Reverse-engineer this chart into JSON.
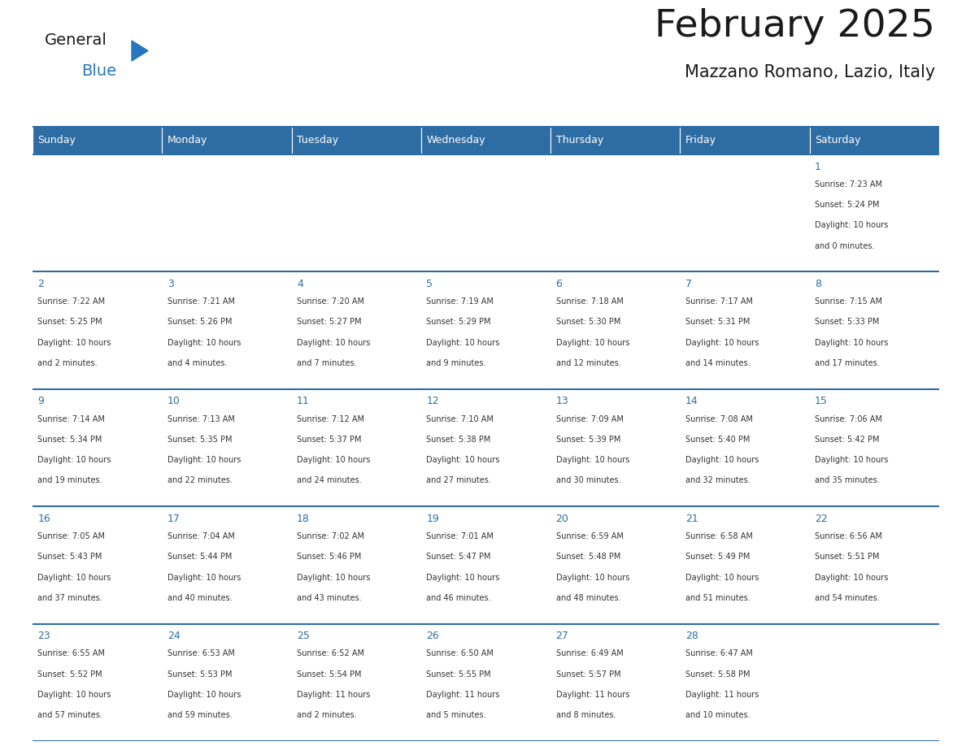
{
  "title": "February 2025",
  "subtitle": "Mazzano Romano, Lazio, Italy",
  "days_of_week": [
    "Sunday",
    "Monday",
    "Tuesday",
    "Wednesday",
    "Thursday",
    "Friday",
    "Saturday"
  ],
  "header_bg": "#2E6DA4",
  "header_text_color": "#FFFFFF",
  "cell_bg": "#FFFFFF",
  "cell_alt_bg": "#F0F4F8",
  "cell_border_color": "#2E6DA4",
  "day_num_color": "#2E6DA4",
  "cell_text_color": "#333333",
  "title_color": "#1a1a1a",
  "subtitle_color": "#1a1a1a",
  "logo_general_color": "#1a1a1a",
  "logo_blue_color": "#2777BE",
  "calendar_data": [
    [
      null,
      null,
      null,
      null,
      null,
      null,
      {
        "day": 1,
        "sunrise": "7:23 AM",
        "sunset": "5:24 PM",
        "daylight": "10 hours and 0 minutes."
      }
    ],
    [
      {
        "day": 2,
        "sunrise": "7:22 AM",
        "sunset": "5:25 PM",
        "daylight": "10 hours and 2 minutes."
      },
      {
        "day": 3,
        "sunrise": "7:21 AM",
        "sunset": "5:26 PM",
        "daylight": "10 hours and 4 minutes."
      },
      {
        "day": 4,
        "sunrise": "7:20 AM",
        "sunset": "5:27 PM",
        "daylight": "10 hours and 7 minutes."
      },
      {
        "day": 5,
        "sunrise": "7:19 AM",
        "sunset": "5:29 PM",
        "daylight": "10 hours and 9 minutes."
      },
      {
        "day": 6,
        "sunrise": "7:18 AM",
        "sunset": "5:30 PM",
        "daylight": "10 hours and 12 minutes."
      },
      {
        "day": 7,
        "sunrise": "7:17 AM",
        "sunset": "5:31 PM",
        "daylight": "10 hours and 14 minutes."
      },
      {
        "day": 8,
        "sunrise": "7:15 AM",
        "sunset": "5:33 PM",
        "daylight": "10 hours and 17 minutes."
      }
    ],
    [
      {
        "day": 9,
        "sunrise": "7:14 AM",
        "sunset": "5:34 PM",
        "daylight": "10 hours and 19 minutes."
      },
      {
        "day": 10,
        "sunrise": "7:13 AM",
        "sunset": "5:35 PM",
        "daylight": "10 hours and 22 minutes."
      },
      {
        "day": 11,
        "sunrise": "7:12 AM",
        "sunset": "5:37 PM",
        "daylight": "10 hours and 24 minutes."
      },
      {
        "day": 12,
        "sunrise": "7:10 AM",
        "sunset": "5:38 PM",
        "daylight": "10 hours and 27 minutes."
      },
      {
        "day": 13,
        "sunrise": "7:09 AM",
        "sunset": "5:39 PM",
        "daylight": "10 hours and 30 minutes."
      },
      {
        "day": 14,
        "sunrise": "7:08 AM",
        "sunset": "5:40 PM",
        "daylight": "10 hours and 32 minutes."
      },
      {
        "day": 15,
        "sunrise": "7:06 AM",
        "sunset": "5:42 PM",
        "daylight": "10 hours and 35 minutes."
      }
    ],
    [
      {
        "day": 16,
        "sunrise": "7:05 AM",
        "sunset": "5:43 PM",
        "daylight": "10 hours and 37 minutes."
      },
      {
        "day": 17,
        "sunrise": "7:04 AM",
        "sunset": "5:44 PM",
        "daylight": "10 hours and 40 minutes."
      },
      {
        "day": 18,
        "sunrise": "7:02 AM",
        "sunset": "5:46 PM",
        "daylight": "10 hours and 43 minutes."
      },
      {
        "day": 19,
        "sunrise": "7:01 AM",
        "sunset": "5:47 PM",
        "daylight": "10 hours and 46 minutes."
      },
      {
        "day": 20,
        "sunrise": "6:59 AM",
        "sunset": "5:48 PM",
        "daylight": "10 hours and 48 minutes."
      },
      {
        "day": 21,
        "sunrise": "6:58 AM",
        "sunset": "5:49 PM",
        "daylight": "10 hours and 51 minutes."
      },
      {
        "day": 22,
        "sunrise": "6:56 AM",
        "sunset": "5:51 PM",
        "daylight": "10 hours and 54 minutes."
      }
    ],
    [
      {
        "day": 23,
        "sunrise": "6:55 AM",
        "sunset": "5:52 PM",
        "daylight": "10 hours and 57 minutes."
      },
      {
        "day": 24,
        "sunrise": "6:53 AM",
        "sunset": "5:53 PM",
        "daylight": "10 hours and 59 minutes."
      },
      {
        "day": 25,
        "sunrise": "6:52 AM",
        "sunset": "5:54 PM",
        "daylight": "11 hours and 2 minutes."
      },
      {
        "day": 26,
        "sunrise": "6:50 AM",
        "sunset": "5:55 PM",
        "daylight": "11 hours and 5 minutes."
      },
      {
        "day": 27,
        "sunrise": "6:49 AM",
        "sunset": "5:57 PM",
        "daylight": "11 hours and 8 minutes."
      },
      {
        "day": 28,
        "sunrise": "6:47 AM",
        "sunset": "5:58 PM",
        "daylight": "11 hours and 10 minutes."
      },
      null
    ]
  ]
}
